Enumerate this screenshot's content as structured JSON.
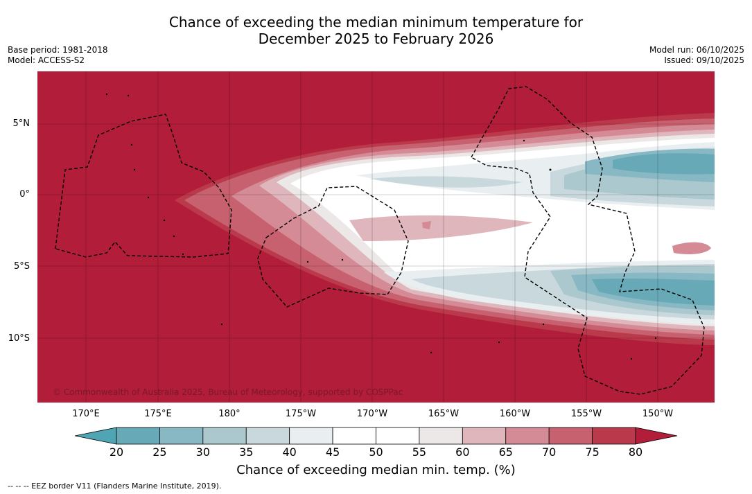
{
  "title_line1": "Chance of exceeding the median minimum temperature for",
  "title_line2": "December 2025 to February 2026",
  "base_period": "Base period: 1981-2018",
  "model": "Model: ACCESS-S2",
  "model_run": "Model run: 06/10/2025",
  "issued": "Issued: 09/10/2025",
  "copyright": "© Commonwealth of Australia 2025, Bureau of Meteorology, supported by COSPPac",
  "lat_labels": [
    "5°N",
    "0°",
    "5°S",
    "10°S"
  ],
  "lon_labels": [
    "170°E",
    "175°E",
    "180°",
    "175°W",
    "170°W",
    "165°W",
    "160°W",
    "155°W",
    "150°W"
  ],
  "colorbar": {
    "ticks": [
      "20",
      "25",
      "30",
      "35",
      "40",
      "45",
      "50",
      "55",
      "60",
      "65",
      "70",
      "75",
      "80"
    ],
    "colors": [
      "#67a9b6",
      "#88b8c4",
      "#aac8ce",
      "#c9d8dd",
      "#e9eff1",
      "#ffffff",
      "#ffffff",
      "#ede8e8",
      "#e0b6bd",
      "#d58b95",
      "#c7616f",
      "#ba3a4c"
    ],
    "under_color": "#4fa5b4",
    "over_color": "#b21d3a",
    "label": "Chance of exceeding median min. temp. (%)"
  },
  "footnote": "--  --  -- EEZ border V11 (Flanders Marine Institute, 2019)."
}
